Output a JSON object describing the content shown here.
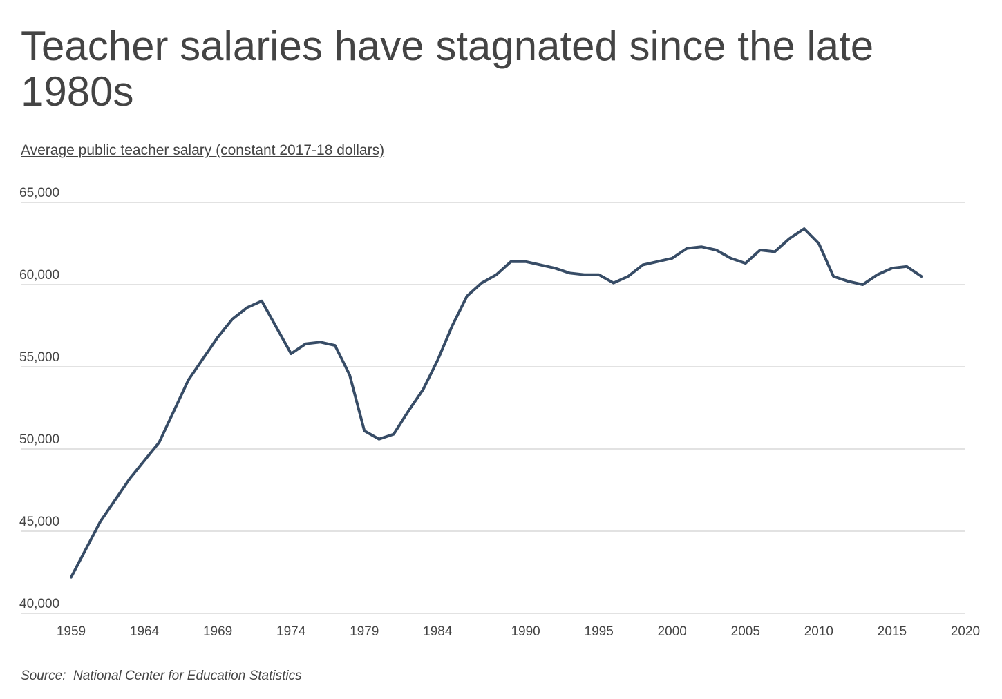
{
  "chart_data": {
    "type": "line",
    "title": "Teacher salaries have stagnated since the late 1980s",
    "subtitle": "Average public teacher salary (constant 2017-18 dollars)",
    "xlabel": "",
    "ylabel": "",
    "xlim": [
      1959,
      2020
    ],
    "ylim": [
      40000,
      65000
    ],
    "grid": true,
    "legend": "none",
    "x_ticks": [
      "1959",
      "1964",
      "1969",
      "1974",
      "1979",
      "1984",
      "1990",
      "1995",
      "2000",
      "2005",
      "2010",
      "2015",
      "2020"
    ],
    "y_ticks": [
      "40,000",
      "45,000",
      "50,000",
      "55,000",
      "60,000",
      "65,000"
    ],
    "series": [
      {
        "color": "#374c66",
        "x": [
          1959,
          1961,
          1963,
          1965,
          1967,
          1968,
          1969,
          1970,
          1971,
          1972,
          1974,
          1975,
          1976,
          1977,
          1978,
          1979,
          1980,
          1981,
          1982,
          1983,
          1984,
          1985,
          1986,
          1987,
          1988,
          1989,
          1990,
          1991,
          1992,
          1993,
          1994,
          1995,
          1996,
          1997,
          1998,
          1999,
          2000,
          2001,
          2002,
          2003,
          2004,
          2005,
          2006,
          2007,
          2008,
          2009,
          2010,
          2011,
          2012,
          2013,
          2014,
          2015,
          2016,
          2017
        ],
        "values": [
          42200,
          45600,
          48200,
          50400,
          54200,
          55500,
          56800,
          57900,
          58600,
          59000,
          55800,
          56400,
          56500,
          56300,
          54500,
          51100,
          50600,
          50900,
          52300,
          53600,
          55400,
          57500,
          59300,
          60100,
          60600,
          61400,
          61400,
          61200,
          61000,
          60700,
          60600,
          60600,
          60100,
          60500,
          61200,
          61400,
          61600,
          62200,
          62300,
          62100,
          61600,
          61300,
          62100,
          62000,
          62800,
          63400,
          62500,
          60500,
          60200,
          60000,
          60600,
          61000,
          61100,
          60500
        ]
      }
    ]
  },
  "source_label": "Source:",
  "source_text": "National Center for Education Statistics"
}
